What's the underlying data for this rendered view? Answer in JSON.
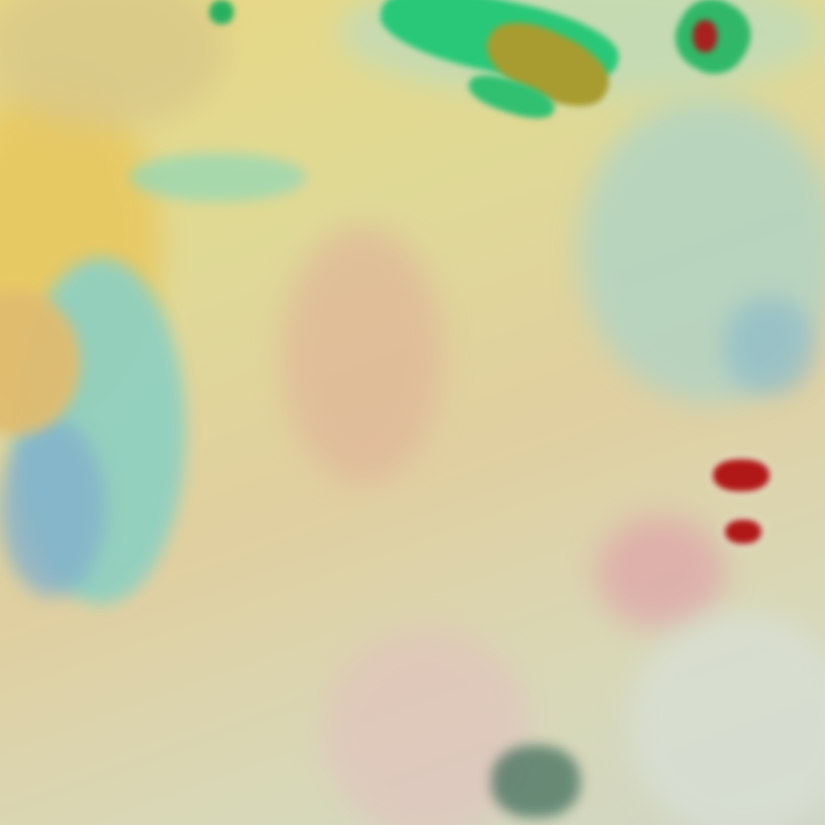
{
  "image": {
    "kind": "false-color satellite imagery",
    "palette": {
      "base_haze": "#d8dca0",
      "dust_yellow": "#e6d879",
      "pink_surface": "#e2b8a8",
      "water_cyan": "#8fcfc0",
      "deep_water_blue": "#7aa8c8",
      "cloud_green": "#2fd08a",
      "cloud_core_olive": "#a8a030",
      "storm_red": "#b01818",
      "cirrus_dark": "#3a6a58"
    }
  }
}
